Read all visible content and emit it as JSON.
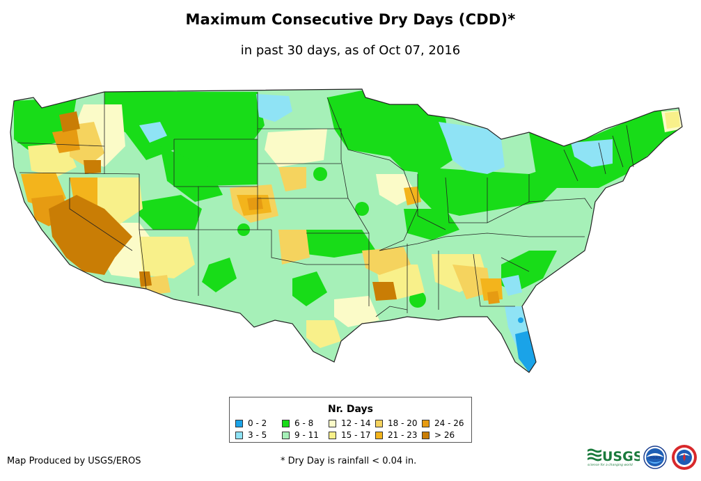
{
  "header": {
    "title": "Maximum Consecutive Dry Days (CDD)*",
    "subtitle": "in past 30 days, as of Oct 07, 2016"
  },
  "legend": {
    "title": "Nr. Days",
    "items": [
      {
        "label": "0 - 2",
        "color": "#1aa3e8"
      },
      {
        "label": "3 - 5",
        "color": "#8fe3f5"
      },
      {
        "label": "6 - 8",
        "color": "#18dc18"
      },
      {
        "label": "9 - 11",
        "color": "#a6f0b8"
      },
      {
        "label": "12 - 14",
        "color": "#fbfbc8"
      },
      {
        "label": "15 - 17",
        "color": "#f8f08a"
      },
      {
        "label": "18 - 20",
        "color": "#f5d35e"
      },
      {
        "label": "21 - 23",
        "color": "#f3b41c"
      },
      {
        "label": "24 - 26",
        "color": "#e69b12"
      },
      {
        "label": "> 26",
        "color": "#c97d05"
      }
    ]
  },
  "footer": {
    "credit": "Map Produced by USGS/EROS",
    "footnote": "* Dry Day is rainfall < 0.04 in.",
    "usgs_logo_text": "USGS",
    "usgs_tagline": "science for a changing world",
    "noaa_logo_text": "noaa"
  }
}
